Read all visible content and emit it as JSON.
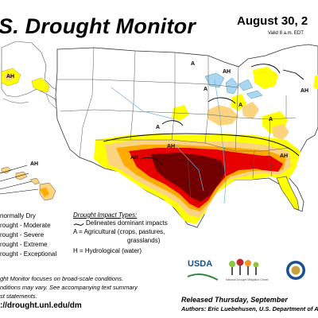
{
  "title": "S. Drought Monitor",
  "date": "August 30, 2",
  "valid": "Valid 8 a.m. EDT",
  "colors": {
    "D0": "#ffff00",
    "D1": "#fcd37f",
    "D2": "#ffaa00",
    "D3": "#e60000",
    "D4": "#730000",
    "land": "#ffffff",
    "water": "#a9d6f0",
    "border": "#444444"
  },
  "map_labels": {
    "a1": "A",
    "a2": "A",
    "a3": "A",
    "a4": "A",
    "a5": "A",
    "ah1": "AH",
    "ah2": "AH",
    "ah3": "AH",
    "ah4": "AH",
    "ah5": "AH",
    "ah6": "AH",
    "ah7": "AH"
  },
  "legend_severity": [
    "Abnormally Dry",
    "Drought - Moderate",
    "Drought - Severe",
    "Drought - Extreme",
    "Drought - Exceptional"
  ],
  "legend_severity_visible": [
    "normally Dry",
    "rought - Moderate",
    "rought - Severe",
    "rought - Extreme",
    "rought - Exceptional"
  ],
  "impact": {
    "title": "Drought Impact Types:",
    "delineates": "Delineates dominant impacts",
    "agri_1": "A = Agricultural (crops, pastures,",
    "agri_2": "grasslands)",
    "hydro": "H = Hydrological (water)"
  },
  "note_lines": [
    "ght Monitor focuses on broad-scale conditions.",
    "nditions may vary. See accompanying text summary",
    "st statements."
  ],
  "url": "://drought.unl.edu/dm",
  "released": "Released Thursday, September",
  "authors": "Authors: Eric Luebehusen, U.S. Department of Ag",
  "logos": {
    "usda": "USDA",
    "ndmc": "National Drought Mitigation Center"
  }
}
